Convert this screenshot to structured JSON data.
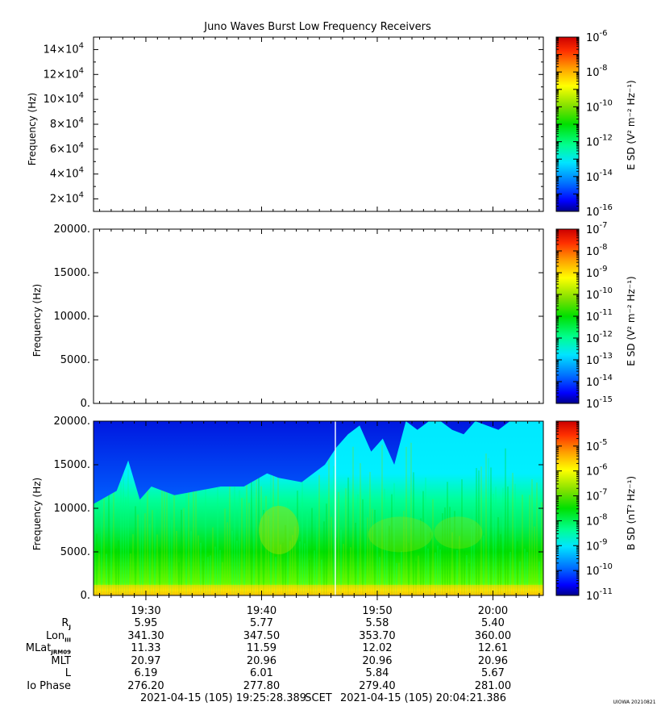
{
  "title": "Juno Waves Burst Low Frequency Receivers",
  "footer": {
    "start": "2021-04-15 (105) 19:25:28.389",
    "frame": "SCET",
    "end": "2021-04-15 (105) 20:04:21.386",
    "credit": "UIOWA 20210821"
  },
  "time_ticks": [
    "19:30",
    "19:40",
    "19:50",
    "20:00"
  ],
  "ephemeris": {
    "rows": [
      {
        "label": "R",
        "sub": "J",
        "values": [
          "5.95",
          "5.77",
          "5.58",
          "5.40"
        ]
      },
      {
        "label": "Lon",
        "sub": "III",
        "values": [
          "341.30",
          "347.50",
          "353.70",
          "360.00"
        ]
      },
      {
        "label": "MLat",
        "sub": "JRM09",
        "values": [
          "11.33",
          "11.59",
          "12.02",
          "12.61"
        ]
      },
      {
        "label": "MLT",
        "sub": "",
        "values": [
          "20.97",
          "20.96",
          "20.96",
          "20.96"
        ]
      },
      {
        "label": "L",
        "sub": "",
        "values": [
          "6.19",
          "6.01",
          "5.84",
          "5.67"
        ]
      },
      {
        "label": "Io Phase",
        "sub": "",
        "values": [
          "276.20",
          "277.80",
          "279.40",
          "281.00"
        ]
      }
    ]
  },
  "colors": {
    "spectrum": [
      "#00008b",
      "#0000ff",
      "#0070ff",
      "#00e5ff",
      "#00ff90",
      "#00e000",
      "#7ee000",
      "#ffff00",
      "#ffa000",
      "#ff3000",
      "#cc0000"
    ]
  },
  "chart_data": [
    {
      "type": "heatmap",
      "title": "Juno Waves Burst Low Frequency Receivers",
      "ylabel": "Frequency (Hz)",
      "ylim": [
        10000,
        150000
      ],
      "y_ticks": [
        20000,
        40000,
        60000,
        80000,
        100000,
        120000,
        140000
      ],
      "y_tick_labels": [
        {
          "base": "2×10",
          "exp": "4"
        },
        {
          "base": "4×10",
          "exp": "4"
        },
        {
          "base": "6×10",
          "exp": "4"
        },
        {
          "base": "8×10",
          "exp": "4"
        },
        {
          "base": "10×10",
          "exp": "4"
        },
        {
          "base": "12×10",
          "exp": "4"
        },
        {
          "base": "14×10",
          "exp": "4"
        }
      ],
      "colorbar": {
        "label": "E SD (V² m⁻² Hz⁻¹)",
        "scale": "log",
        "range": [
          1e-16,
          1e-06
        ],
        "tick_exponents": [
          "-6",
          "-8",
          "-10",
          "-12",
          "-14",
          "-16"
        ]
      },
      "has_data": false
    },
    {
      "type": "heatmap",
      "ylabel": "Frequency (Hz)",
      "ylim": [
        0,
        20000
      ],
      "y_ticks": [
        0,
        5000,
        10000,
        15000,
        20000
      ],
      "y_tick_labels": [
        "0.",
        "5000.",
        "10000.",
        "15000.",
        "20000."
      ],
      "colorbar": {
        "label": "E SD (V² m⁻² Hz⁻¹)",
        "scale": "log",
        "range": [
          1e-15,
          1e-07
        ],
        "tick_exponents": [
          "-7",
          "-8",
          "-9",
          "-10",
          "-11",
          "-12",
          "-13",
          "-14",
          "-15"
        ]
      },
      "has_data": false
    },
    {
      "type": "heatmap",
      "ylabel": "Frequency (Hz)",
      "ylim": [
        0,
        20000
      ],
      "y_ticks": [
        0,
        5000,
        10000,
        15000,
        20000
      ],
      "y_tick_labels": [
        "0.",
        "5000.",
        "10000.",
        "15000.",
        "20000."
      ],
      "x_range": [
        "19:25:28",
        "20:04:21"
      ],
      "colorbar": {
        "label": "B SD (nT² Hz⁻¹)",
        "scale": "log",
        "range": [
          1e-11,
          0.0001
        ],
        "tick_exponents": [
          "-5",
          "-6",
          "-7",
          "-8",
          "-9",
          "-10",
          "-11"
        ]
      },
      "has_data": true,
      "noise_boundary": {
        "time_min": [
          0,
          2,
          3,
          4,
          5,
          7,
          9,
          11,
          13,
          15,
          16,
          18,
          20,
          21,
          22,
          23,
          24,
          25,
          26,
          27,
          28,
          29,
          30,
          31,
          32,
          33,
          34,
          35,
          36,
          37,
          39
        ],
        "freq_hz": [
          10500,
          12000,
          15500,
          11000,
          12500,
          11500,
          12000,
          12500,
          12500,
          14000,
          13500,
          13000,
          15000,
          17000,
          18500,
          19500,
          16500,
          18000,
          15000,
          20000,
          19000,
          20000,
          20000,
          19000,
          18500,
          20000,
          19500,
          19000,
          20000,
          20000,
          20000
        ]
      }
    }
  ]
}
